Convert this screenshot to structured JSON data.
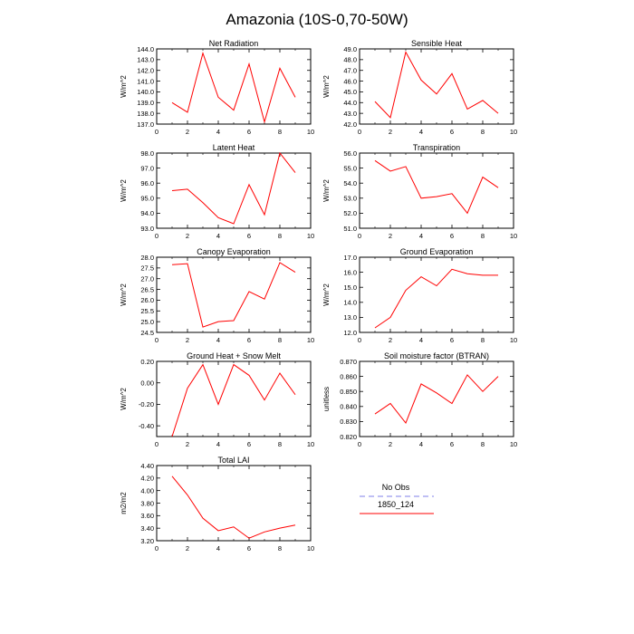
{
  "title": "Amazonia (10S-0,70-50W)",
  "colors": {
    "series": "#ff0000",
    "no_obs": "#9999ee"
  },
  "legend": {
    "entries": [
      "No Obs",
      "1850_124"
    ]
  },
  "chart_data": [
    {
      "id": "net-radiation",
      "type": "line",
      "title": "Net Radiation",
      "ylabel": "W/m^2",
      "x": [
        1,
        2,
        3,
        4,
        5,
        6,
        7,
        8,
        9
      ],
      "values": [
        139.0,
        138.1,
        143.6,
        139.5,
        138.3,
        142.6,
        137.2,
        142.2,
        139.5
      ],
      "xlim": [
        0,
        10
      ],
      "ylim": [
        137.0,
        144.0
      ],
      "xticks": [
        "0",
        "2",
        "4",
        "6",
        "8",
        "10"
      ],
      "yticks": [
        "137.0",
        "138.0",
        "139.0",
        "140.0",
        "141.0",
        "142.0",
        "143.0",
        "144.0"
      ]
    },
    {
      "id": "sensible-heat",
      "type": "line",
      "title": "Sensible Heat",
      "ylabel": "W/m^2",
      "x": [
        1,
        2,
        3,
        4,
        5,
        6,
        7,
        8,
        9
      ],
      "values": [
        44.1,
        42.6,
        48.7,
        46.1,
        44.8,
        46.7,
        43.4,
        44.2,
        43.0
      ],
      "xlim": [
        0,
        10
      ],
      "ylim": [
        42.0,
        49.0
      ],
      "xticks": [
        "0",
        "2",
        "4",
        "6",
        "8",
        "10"
      ],
      "yticks": [
        "42.0",
        "43.0",
        "44.0",
        "45.0",
        "46.0",
        "47.0",
        "48.0",
        "49.0"
      ]
    },
    {
      "id": "latent-heat",
      "type": "line",
      "title": "Latent Heat",
      "ylabel": "W/m^2",
      "x": [
        1,
        2,
        3,
        4,
        5,
        6,
        7,
        8,
        9
      ],
      "values": [
        95.5,
        95.6,
        94.7,
        93.7,
        93.3,
        95.9,
        93.9,
        98.0,
        96.7
      ],
      "xlim": [
        0,
        10
      ],
      "ylim": [
        93.0,
        98.0
      ],
      "xticks": [
        "0",
        "2",
        "4",
        "6",
        "8",
        "10"
      ],
      "yticks": [
        "93.0",
        "94.0",
        "95.0",
        "96.0",
        "97.0",
        "98.0"
      ]
    },
    {
      "id": "transpiration",
      "type": "line",
      "title": "Transpiration",
      "ylabel": "W/m^2",
      "x": [
        1,
        2,
        3,
        4,
        5,
        6,
        7,
        8,
        9
      ],
      "values": [
        55.5,
        54.8,
        55.1,
        53.0,
        53.1,
        53.3,
        52.0,
        54.4,
        53.7
      ],
      "xlim": [
        0,
        10
      ],
      "ylim": [
        51.0,
        56.0
      ],
      "xticks": [
        "0",
        "2",
        "4",
        "6",
        "8",
        "10"
      ],
      "yticks": [
        "51.0",
        "52.0",
        "53.0",
        "54.0",
        "55.0",
        "56.0"
      ]
    },
    {
      "id": "canopy-evaporation",
      "type": "line",
      "title": "Canopy Evaporation",
      "ylabel": "W/m^2",
      "x": [
        1,
        2,
        3,
        4,
        5,
        6,
        7,
        8,
        9
      ],
      "values": [
        27.65,
        27.7,
        24.75,
        25.0,
        25.05,
        26.4,
        26.05,
        27.75,
        27.3
      ],
      "xlim": [
        0,
        10
      ],
      "ylim": [
        24.5,
        28.0
      ],
      "xticks": [
        "0",
        "2",
        "4",
        "6",
        "8",
        "10"
      ],
      "yticks": [
        "24.5",
        "25.0",
        "25.5",
        "26.0",
        "26.5",
        "27.0",
        "27.5",
        "28.0"
      ]
    },
    {
      "id": "ground-evaporation",
      "type": "line",
      "title": "Ground Evaporation",
      "ylabel": "W/m^2",
      "x": [
        1,
        2,
        3,
        4,
        5,
        6,
        7,
        8,
        9
      ],
      "values": [
        12.3,
        13.0,
        14.8,
        15.7,
        15.1,
        16.2,
        15.9,
        15.8,
        15.8
      ],
      "xlim": [
        0,
        10
      ],
      "ylim": [
        12.0,
        17.0
      ],
      "xticks": [
        "0",
        "2",
        "4",
        "6",
        "8",
        "10"
      ],
      "yticks": [
        "12.0",
        "13.0",
        "14.0",
        "15.0",
        "16.0",
        "17.0"
      ]
    },
    {
      "id": "ground-heat-snow-melt",
      "type": "line",
      "title": "Ground Heat + Snow Melt",
      "ylabel": "W/m^2",
      "x": [
        1,
        2,
        3,
        4,
        5,
        6,
        7,
        8,
        9
      ],
      "values": [
        -0.5,
        -0.05,
        0.17,
        -0.2,
        0.17,
        0.07,
        -0.16,
        0.09,
        -0.11
      ],
      "xlim": [
        0,
        10
      ],
      "ylim": [
        -0.5,
        0.2
      ],
      "xticks": [
        "0",
        "2",
        "4",
        "6",
        "8",
        "10"
      ],
      "yticks": [
        "-0.40",
        "-0.20",
        "0.00",
        "0.20"
      ],
      "ytick_values": [
        -0.4,
        -0.2,
        0.0,
        0.2
      ]
    },
    {
      "id": "soil-moisture-factor",
      "type": "line",
      "title": "Soil moisture factor (BTRAN)",
      "ylabel": "unitless",
      "x": [
        1,
        2,
        3,
        4,
        5,
        6,
        7,
        8,
        9
      ],
      "values": [
        0.835,
        0.842,
        0.829,
        0.855,
        0.849,
        0.842,
        0.861,
        0.85,
        0.86
      ],
      "xlim": [
        0,
        10
      ],
      "ylim": [
        0.82,
        0.87
      ],
      "xticks": [
        "0",
        "2",
        "4",
        "6",
        "8",
        "10"
      ],
      "yticks": [
        "0.820",
        "0.830",
        "0.840",
        "0.850",
        "0.860",
        "0.870"
      ]
    },
    {
      "id": "total-lai",
      "type": "line",
      "title": "Total LAI",
      "ylabel": "m2/m2",
      "x": [
        1,
        2,
        3,
        4,
        5,
        6,
        7,
        8,
        9
      ],
      "values": [
        4.23,
        3.93,
        3.56,
        3.36,
        3.42,
        3.24,
        3.34,
        3.4,
        3.45
      ],
      "xlim": [
        0,
        10
      ],
      "ylim": [
        3.2,
        4.4
      ],
      "xticks": [
        "0",
        "2",
        "4",
        "6",
        "8",
        "10"
      ],
      "yticks": [
        "3.20",
        "3.40",
        "3.60",
        "3.80",
        "4.00",
        "4.20",
        "4.40"
      ]
    }
  ]
}
